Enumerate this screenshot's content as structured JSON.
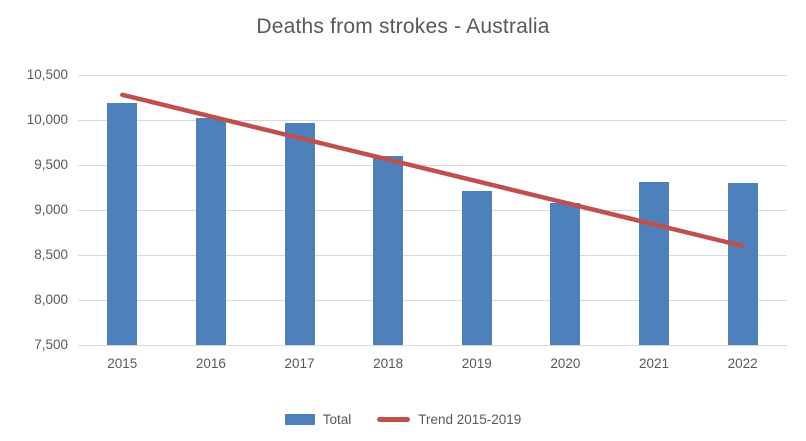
{
  "chart_data": {
    "type": "bar",
    "title": "Deaths from strokes - Australia",
    "categories": [
      "2015",
      "2016",
      "2017",
      "2018",
      "2019",
      "2020",
      "2021",
      "2022"
    ],
    "series": [
      {
        "name": "Total",
        "type": "bar",
        "color": "#4e80bc",
        "values": [
          10190,
          10020,
          9970,
          9600,
          9210,
          9080,
          9310,
          9300
        ]
      },
      {
        "name": "Trend 2015-2019",
        "type": "line",
        "color": "#c0504d",
        "values": [
          10280,
          10040,
          9800,
          9560,
          9320,
          9080,
          8840,
          8600
        ]
      }
    ],
    "xlabel": "",
    "ylabel": "",
    "ylim": [
      7500,
      10500
    ],
    "ytick_step": 500,
    "ytick_labels": [
      "7,500",
      "8,000",
      "8,500",
      "9,000",
      "9,500",
      "10,000",
      "10,500"
    ],
    "grid": true,
    "legend_position": "bottom",
    "colors": {
      "text": "#595959",
      "gridline": "#d9d9d9",
      "background": "#ffffff"
    }
  }
}
